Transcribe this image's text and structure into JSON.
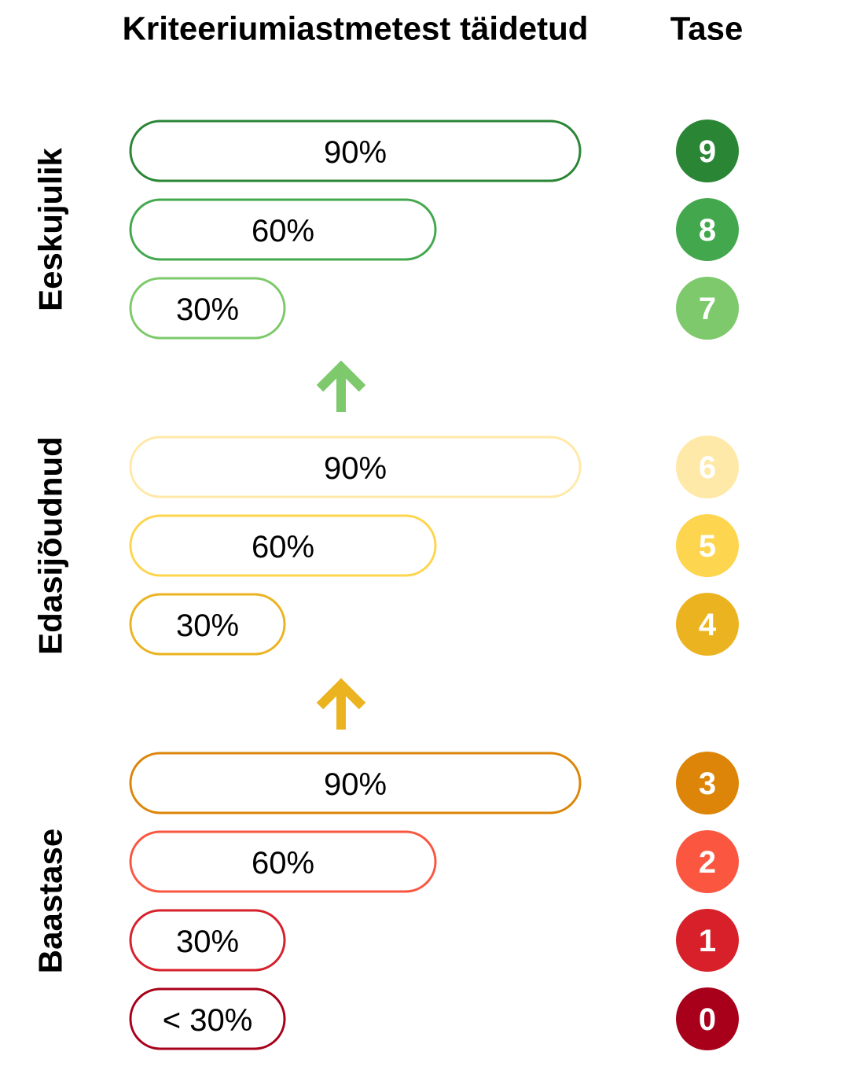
{
  "header": {
    "criteria": "Kriteeriumiastmetest täidetud",
    "level": "Tase"
  },
  "groups": [
    {
      "label": "Eeskujulik",
      "rows": [
        {
          "percent": "90%",
          "level": "9",
          "color": "#2a8534"
        },
        {
          "percent": "60%",
          "level": "8",
          "color": "#43a84d"
        },
        {
          "percent": "30%",
          "level": "7",
          "color": "#7dc96b"
        }
      ]
    },
    {
      "label": "Edasijõudnud",
      "rows": [
        {
          "percent": "90%",
          "level": "6",
          "color": "#ffe9a8"
        },
        {
          "percent": "60%",
          "level": "5",
          "color": "#fdd54e"
        },
        {
          "percent": "30%",
          "level": "4",
          "color": "#ebb31f"
        }
      ]
    },
    {
      "label": "Baastase",
      "rows": [
        {
          "percent": "90%",
          "level": "3",
          "color": "#dc8508"
        },
        {
          "percent": "60%",
          "level": "2",
          "color": "#fa5640"
        },
        {
          "percent": "30%",
          "level": "1",
          "color": "#d7202a"
        },
        {
          "percent": "< 30%",
          "level": "0",
          "color": "#a8001a"
        }
      ]
    }
  ]
}
